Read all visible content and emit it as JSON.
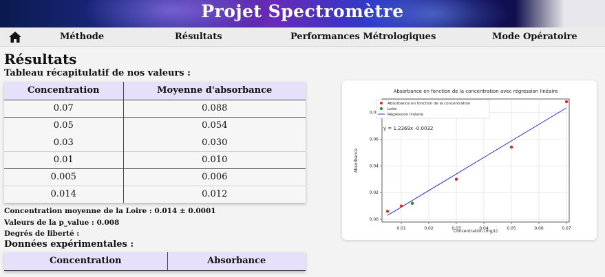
{
  "header": {
    "title": "Projet Spectromètre"
  },
  "nav": {
    "items": [
      "Méthode",
      "Résultats",
      "Performances Métrologiques",
      "Mode Opératoire"
    ]
  },
  "page": {
    "title": "Résultats",
    "summary_heading": "Tableau récapitulatif de nos valeurs :",
    "experimental_heading": "Données expérimentales :"
  },
  "summary_table": {
    "headers": [
      "Concentration",
      "Moyenne d'absorbance"
    ],
    "rows": [
      [
        "0.07",
        "0.088"
      ],
      [
        "0.05",
        "0.054"
      ],
      [
        "0.03",
        "0.030"
      ],
      [
        "0.01",
        "0.010"
      ],
      [
        "0.005",
        "0.006"
      ],
      [
        "0.014",
        "0.012"
      ]
    ]
  },
  "stats": {
    "mean_concentration": "Concentration moyenne de la Loire : 0.014 ± 0.0001",
    "p_value": "Valeurs de la p_value : 0.008",
    "degrees_of_freedom": "Degrés de liberté :"
  },
  "experimental_table": {
    "headers": [
      "Concentration",
      "Absorbance"
    ]
  },
  "colors": {
    "banner": "#2c39c8",
    "header_cell": "#e6e0fa",
    "points": "#e8211f",
    "loire": "#1f8a2a",
    "regression": "#2a2ad6"
  },
  "icons": {
    "home": "home-icon"
  },
  "chart_data": {
    "type": "scatter",
    "title": "Absorbance en fonction de la concentration avec régression linéaire",
    "xlabel": "Concentration (mg/L)",
    "ylabel": "Absorbance",
    "xlim": [
      0.003,
      0.071
    ],
    "ylim": [
      -0.002,
      0.09
    ],
    "xticks": [
      "0.01",
      "0.02",
      "0.03",
      "0.04",
      "0.05",
      "0.06",
      "0.07"
    ],
    "yticks": [
      "0.00",
      "0.02",
      "0.04",
      "0.06",
      "0.08"
    ],
    "grid": true,
    "legend_position": "top-left",
    "equation": "y = 1.2369x -0.0032",
    "series": [
      {
        "name": "Absorbance en fonction de la concentration",
        "x": [
          0.005,
          0.01,
          0.03,
          0.05,
          0.07
        ],
        "y": [
          0.006,
          0.01,
          0.03,
          0.054,
          0.088
        ]
      },
      {
        "name": "Loire",
        "x": [
          0.014
        ],
        "y": [
          0.012
        ]
      },
      {
        "name": "Régression linéaire",
        "slope": 1.2369,
        "intercept": -0.0032,
        "x_range": [
          0.005,
          0.07
        ]
      }
    ]
  }
}
